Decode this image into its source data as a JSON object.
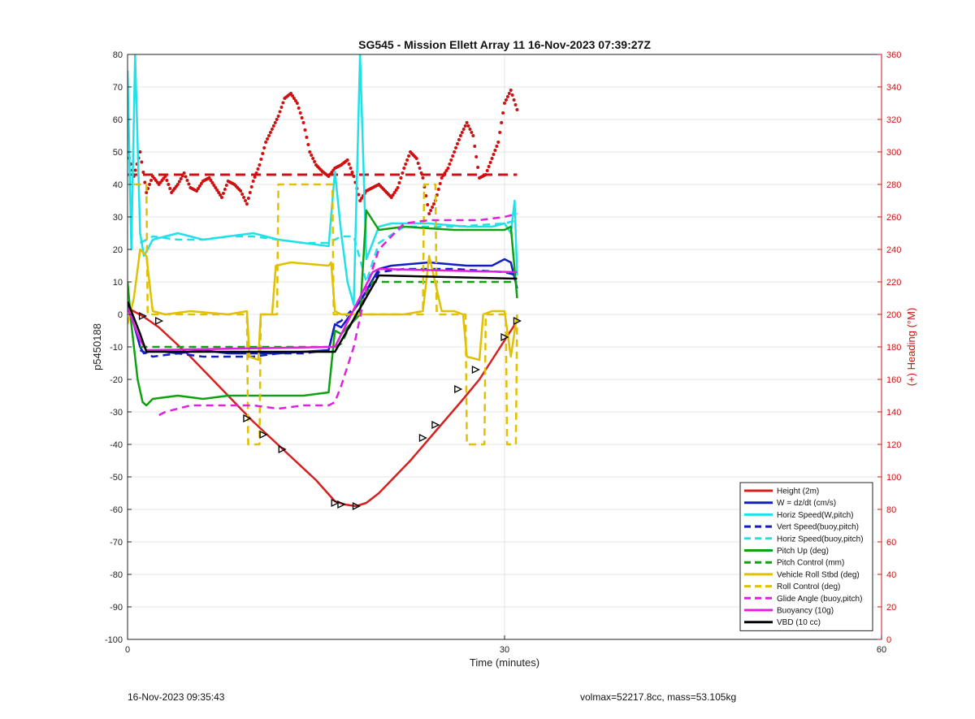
{
  "chart_data": {
    "type": "line",
    "title": "SG545 - Mission Ellett Array 11 16-Nov-2023 07:39:27Z",
    "xlabel": "Time (minutes)",
    "ylabel": "p5450188",
    "y2label": "(+) Heading (°M)",
    "xlim": [
      0,
      60
    ],
    "ylim": [
      -100,
      80
    ],
    "y2lim": [
      0,
      360
    ],
    "xticks": [
      "0",
      "30",
      "60"
    ],
    "yticks": [
      "80",
      "70",
      "60",
      "50",
      "40",
      "30",
      "20",
      "10",
      "0",
      "-10",
      "-20",
      "-30",
      "-40",
      "-50",
      "-60",
      "-70",
      "-80",
      "-90",
      "-100"
    ],
    "y2ticks": [
      "360",
      "340",
      "320",
      "300",
      "280",
      "260",
      "240",
      "220",
      "200",
      "180",
      "160",
      "140",
      "120",
      "100",
      "80",
      "60",
      "40",
      "20",
      "0"
    ],
    "grid": true,
    "legend_position": "bottom-right",
    "series": [
      {
        "name": "Height (2m)",
        "color": "#d62020",
        "style": "solid",
        "x": [
          0,
          1.2,
          2.5,
          5,
          7.5,
          10,
          12.5,
          15,
          16.5,
          17.3,
          18.2,
          19,
          20,
          22.5,
          24.5,
          26.5,
          28,
          29.5,
          31
        ],
        "y": [
          2,
          -0.5,
          -4,
          -13,
          -23,
          -33,
          -42,
          -51,
          -57.5,
          -58.5,
          -59,
          -58,
          -55,
          -45,
          -36,
          -27,
          -20,
          -11,
          -2
        ]
      },
      {
        "name": "W = dz/dt (cm/s)",
        "color": "#1020c0",
        "style": "solid",
        "x": [
          0,
          0.5,
          1,
          1.3,
          2,
          4,
          6,
          8,
          10,
          12,
          14,
          16,
          16.5,
          17,
          18.5,
          20,
          21,
          24,
          27,
          29,
          30,
          30.5,
          31
        ],
        "y": [
          3,
          -3,
          -10,
          -12,
          -11,
          -12,
          -11,
          -12,
          -12,
          -12,
          -11.5,
          -11,
          -3,
          -4,
          4,
          14,
          15,
          16,
          15,
          15,
          17,
          16,
          8
        ]
      },
      {
        "name": "Horiz Speed(W,pitch)",
        "color": "#20e0e8",
        "style": "solid",
        "x": [
          0,
          0.3,
          0.6,
          1,
          1.3,
          1.6,
          2,
          3,
          4,
          6,
          8,
          10,
          12,
          14,
          16,
          16.5,
          17,
          17.5,
          18,
          18.5,
          19,
          20,
          21,
          24,
          27,
          29,
          30,
          30.5,
          30.8,
          31
        ],
        "y": [
          75,
          20,
          80,
          25,
          18,
          20,
          23,
          24,
          25,
          23,
          24,
          25,
          23,
          22,
          21,
          44,
          25,
          10,
          3,
          80,
          17,
          27,
          28,
          28,
          27,
          27,
          28,
          25,
          35,
          12
        ]
      },
      {
        "name": "Vert Speed(buoy,pitch)",
        "color": "#1020c0",
        "style": "dashed",
        "x": [
          1,
          2,
          4,
          6,
          8,
          10,
          12,
          14,
          16,
          16.5,
          17,
          17.5,
          18.5,
          20,
          22,
          26,
          30,
          31
        ],
        "y": [
          -11,
          -13,
          -12,
          -13,
          -13,
          -13,
          -12,
          -12,
          -11,
          -3,
          -2,
          0,
          4,
          13,
          14,
          14,
          13,
          12
        ]
      },
      {
        "name": "Horiz Speed(buoy,pitch)",
        "color": "#20e0e8",
        "style": "dashed",
        "x": [
          1,
          2,
          4,
          6,
          8,
          10,
          12,
          14,
          16,
          16.5,
          17,
          18,
          19,
          20,
          22,
          26,
          30,
          31
        ],
        "y": [
          22,
          24,
          23,
          23,
          24,
          24,
          23,
          22,
          22,
          23,
          24,
          24,
          10,
          22,
          27,
          27,
          28,
          29
        ]
      },
      {
        "name": "Pitch Up (deg)",
        "color": "#10a010",
        "style": "solid",
        "x": [
          0,
          0.3,
          0.8,
          1.2,
          1.5,
          2,
          4,
          6,
          8,
          10,
          12,
          14,
          16,
          16.5,
          17,
          18.5,
          19,
          20,
          22,
          26,
          29,
          30,
          30.5,
          31
        ],
        "y": [
          10,
          -3,
          -20,
          -27,
          -28,
          -26,
          -25,
          -26,
          -25,
          -25,
          -25,
          -25,
          -24,
          -5,
          -6,
          0,
          32,
          26,
          27,
          26,
          26,
          26,
          27,
          5
        ]
      },
      {
        "name": "Pitch Control (mm)",
        "color": "#10a010",
        "style": "dashed",
        "x": [
          1,
          16.5,
          17,
          19.5,
          20,
          31
        ],
        "y": [
          -10,
          -10,
          -9,
          10,
          10,
          10
        ]
      },
      {
        "name": "Vehicle Roll Stbd (deg)",
        "color": "#e0c000",
        "style": "solid",
        "x": [
          0,
          0.5,
          1,
          1.5,
          2,
          3,
          5,
          8,
          9.5,
          9.7,
          10.4,
          10.6,
          11.5,
          11.8,
          13,
          16,
          16.2,
          16.5,
          17,
          19,
          22,
          23.5,
          24,
          25,
          26,
          26.7,
          27,
          28,
          28.3,
          29,
          30,
          30.5,
          31
        ],
        "y": [
          -3,
          5,
          20,
          18,
          1,
          0,
          1,
          0,
          1,
          -13,
          -14,
          0,
          0,
          15,
          16,
          15,
          16,
          1,
          0,
          0,
          0,
          1,
          18,
          1,
          1,
          0,
          -13,
          -14,
          0,
          1,
          1,
          -13,
          0
        ]
      },
      {
        "name": "Roll Control (deg)",
        "color": "#e0c000",
        "style": "dashed",
        "x": [
          0.5,
          1.5,
          1.6,
          2.5,
          2.6,
          9.5,
          9.6,
          10.5,
          10.6,
          11.9,
          12,
          16.3,
          16.4,
          23.5,
          23.6,
          24.5,
          24.6,
          26.9,
          27,
          28.4,
          28.5,
          30.1,
          30.2,
          30.9,
          31
        ],
        "y": [
          40,
          40,
          0,
          0,
          0,
          0,
          -40,
          -40,
          0,
          0,
          40,
          40,
          0,
          0,
          40,
          40,
          0,
          0,
          -40,
          -40,
          0,
          0,
          -40,
          -40,
          0
        ]
      },
      {
        "name": "Glide Angle (buoy,pitch)",
        "color": "#e020e0",
        "style": "dashed",
        "x": [
          2.5,
          3,
          5,
          8,
          10,
          12,
          14,
          16,
          16.5,
          17,
          18,
          19,
          20,
          22,
          24,
          26,
          28,
          30,
          31
        ],
        "y": [
          -31,
          -30,
          -28,
          -28,
          -28,
          -29,
          -28,
          -28,
          -27,
          -22,
          -10,
          8,
          20,
          28,
          29,
          29,
          29,
          30,
          31
        ]
      },
      {
        "name": "Buoyancy (10g)",
        "color": "#e020e0",
        "style": "solid",
        "x": [
          0,
          1,
          1.5,
          16.5,
          19.5,
          20,
          31
        ],
        "y": [
          2,
          -8,
          -11,
          -10,
          13,
          14,
          13
        ]
      },
      {
        "name": "VBD (10 cc)",
        "color": "#000000",
        "style": "solid",
        "x": [
          0,
          1,
          1.5,
          16.5,
          20,
          31
        ],
        "y": [
          4,
          -6,
          -11.5,
          -11.5,
          12,
          11
        ]
      }
    ],
    "heading_series": {
      "color": "#d01010",
      "style": "dots",
      "x": [
        0,
        0.5,
        1,
        1.5,
        2,
        2.5,
        3,
        3.5,
        4,
        4.5,
        5,
        5.5,
        6,
        6.5,
        7,
        7.5,
        8,
        8.5,
        9,
        9.5,
        10,
        10.5,
        11,
        11.5,
        12,
        12.5,
        13,
        13.5,
        14,
        14.5,
        15,
        15.5,
        16,
        16.5,
        17,
        17.5,
        18,
        18.5,
        19,
        19.5,
        20,
        20.5,
        21,
        21.5,
        22,
        22.5,
        23,
        23.5,
        24,
        24.5,
        25,
        25.5,
        26,
        26.5,
        27,
        27.5,
        28,
        28.5,
        29,
        29.5,
        30,
        30.5,
        31
      ],
      "y": [
        300,
        285,
        300,
        275,
        285,
        280,
        285,
        275,
        280,
        287,
        278,
        276,
        282,
        284,
        278,
        272,
        282,
        280,
        276,
        268,
        282,
        292,
        306,
        314,
        322,
        333,
        336,
        330,
        318,
        300,
        292,
        288,
        285,
        290,
        292,
        295,
        285,
        270,
        276,
        278,
        280,
        276,
        272,
        278,
        290,
        300,
        296,
        284,
        262,
        270,
        284,
        290,
        300,
        310,
        318,
        310,
        284,
        286,
        296,
        306,
        330,
        338,
        326
      ]
    },
    "reference_lines": [
      {
        "name": "",
        "color": "#d01010",
        "style": "dashed",
        "axis": "y2",
        "x": [
          0,
          31
        ],
        "y": [
          286,
          286
        ]
      }
    ],
    "markers": {
      "color": "#000000",
      "style": "triangle",
      "x": [
        1.2,
        2.5,
        9.5,
        10.8,
        12.3,
        16.5,
        17,
        18.2,
        23.5,
        24.5,
        26.3,
        27.7,
        30,
        31
      ],
      "y": [
        -0.5,
        -2,
        -32,
        -37,
        -41.5,
        -58,
        -58.5,
        -59,
        -38,
        -34,
        -23,
        -17,
        -7,
        -2
      ]
    }
  },
  "footer": {
    "left": "16-Nov-2023 09:35:43",
    "right": "volmax=52217.8cc, mass=53.105kg"
  }
}
